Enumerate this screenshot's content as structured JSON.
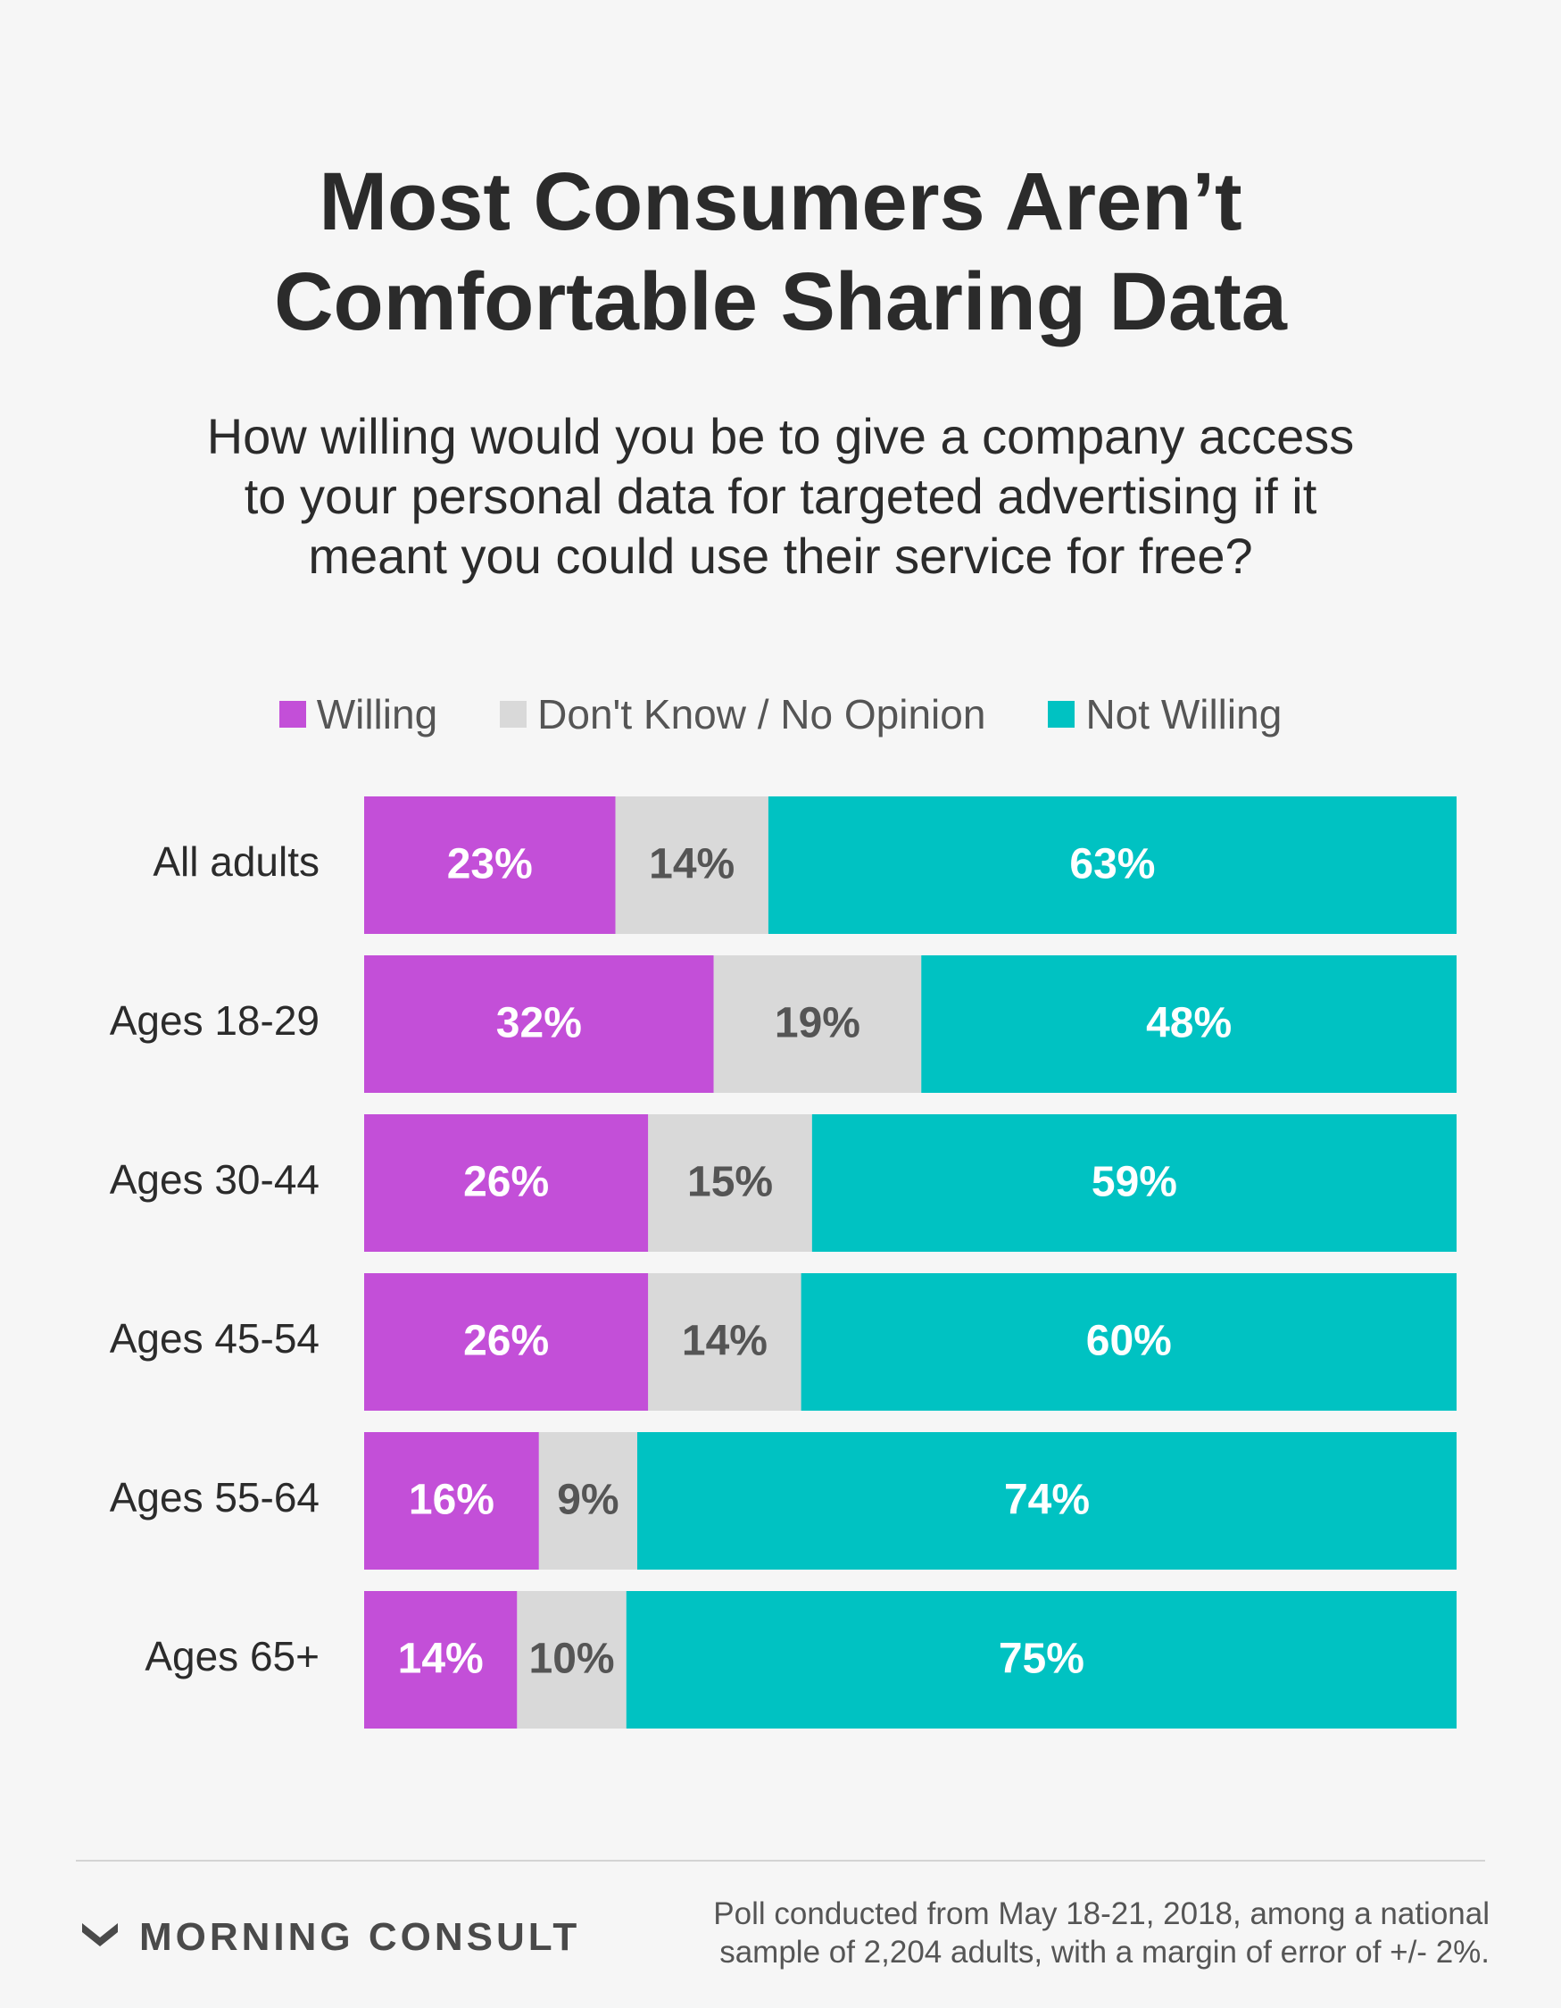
{
  "chart_data": {
    "type": "bar",
    "orientation": "horizontal",
    "stacked": true,
    "title": "Most Consumers Aren’t\nComfortable Sharing Data",
    "subtitle": "How willing would you be to give a company access\nto your personal data for targeted advertising if it\nmeant you could use their service for free?",
    "categories": [
      "All adults",
      "Ages 18-29",
      "Ages 30-44",
      "Ages 45-54",
      "Ages 55-64",
      "Ages 65+"
    ],
    "series": [
      {
        "name": "Willing",
        "color": "#c34fd8",
        "label_color": "#ffffff",
        "values": [
          23,
          32,
          26,
          26,
          16,
          14
        ]
      },
      {
        "name": "Don't Know / No Opinion",
        "color": "#d9d9d9",
        "label_color": "#555555",
        "values": [
          14,
          19,
          15,
          14,
          9,
          10
        ]
      },
      {
        "name": "Not Willing",
        "color": "#00c2c2",
        "label_color": "#ffffff",
        "values": [
          63,
          48,
          59,
          60,
          74,
          75
        ]
      }
    ],
    "value_suffix": "%",
    "legend_position": "top",
    "grid": false
  },
  "branding": {
    "name": "MORNING CONSULT"
  },
  "footnote": "Poll conducted from May 18-21, 2018, among a national\nsample of 2,204 adults, with a margin of error of +/- 2%."
}
